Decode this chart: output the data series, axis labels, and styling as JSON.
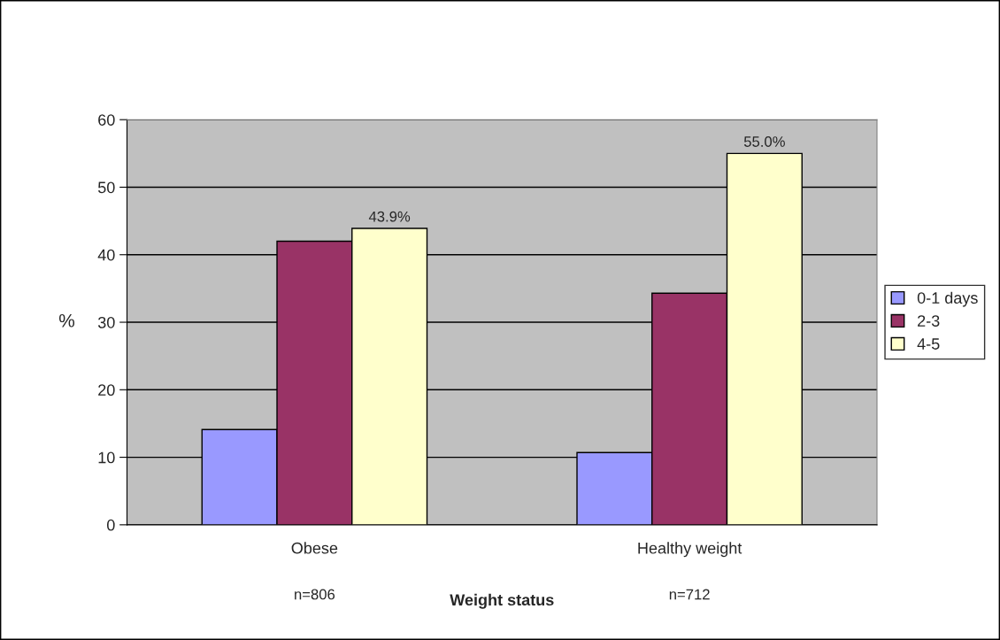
{
  "chart_data": {
    "type": "bar",
    "xlabel": "Weight status",
    "ylabel": "%",
    "categories": [
      "Obese",
      "Healthy weight"
    ],
    "series": [
      {
        "name": "0-1 days",
        "color": "#9999ff",
        "values": [
          14.1,
          10.7
        ]
      },
      {
        "name": "2-3",
        "color": "#993366",
        "values": [
          42.0,
          34.3
        ]
      },
      {
        "name": "4-5",
        "color": "#ffffcc",
        "values": [
          43.9,
          55.0
        ],
        "value_labels": [
          "43.9%",
          "55.0%"
        ]
      }
    ],
    "ylim": [
      0,
      60
    ],
    "yticks": [
      0,
      10,
      20,
      30,
      40,
      50,
      60
    ],
    "grid": "y",
    "legend": "right",
    "annotations": [
      "n=806",
      "n=712"
    ]
  }
}
